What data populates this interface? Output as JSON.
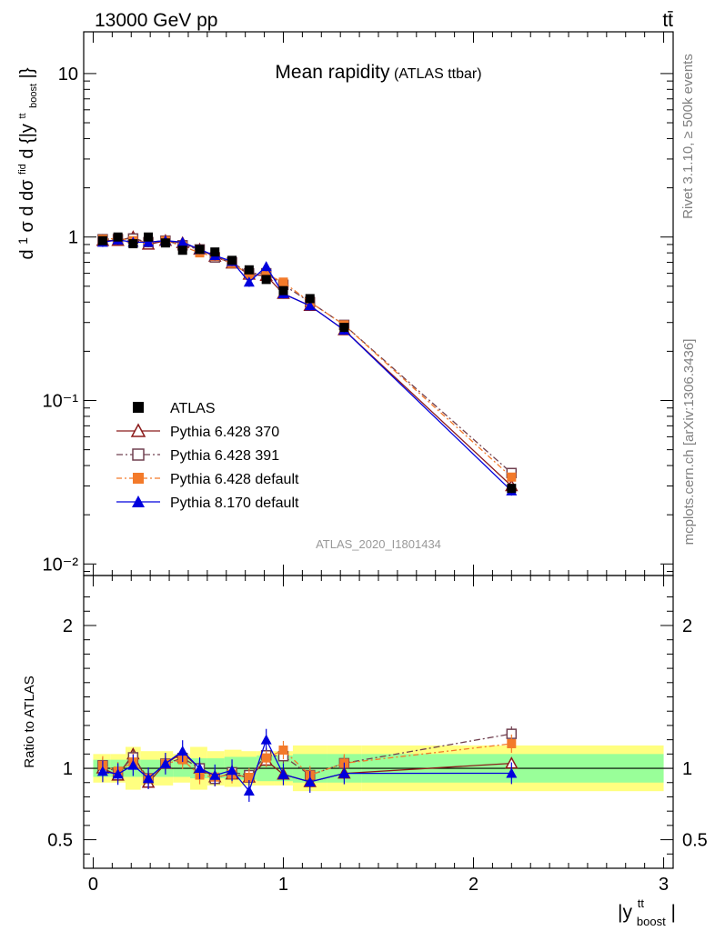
{
  "header": {
    "energy_label": "13000 GeV pp",
    "process_label": "tt̄",
    "title_main": "Mean rapidity",
    "title_sub": "(ATLAS ttbar)",
    "analysis_id": "ATLAS_2020_I1801434",
    "rivet_label": "Rivet 3.1.10, ≥ 500k events",
    "mcplots_label": "mcplots.cern.ch [arXiv:1306.3436]"
  },
  "axes": {
    "top_ylabel_lines": [
      "d",
      "1",
      "σ",
      "d",
      "dσ",
      "fid",
      "d {|y",
      "tt",
      "boost",
      "|}"
    ],
    "bottom_ylabel": "Ratio to ATLAS",
    "xlabel_main": "|y",
    "xlabel_sup": "tt",
    "xlabel_sub": "boost",
    "xlabel_end": "|"
  },
  "chart_data": {
    "type": "line",
    "x": [
      0.05,
      0.13,
      0.21,
      0.29,
      0.38,
      0.47,
      0.56,
      0.64,
      0.73,
      0.82,
      0.91,
      1.0,
      1.14,
      1.32,
      2.2
    ],
    "x_edges": [
      0.0,
      0.09,
      0.17,
      0.25,
      0.34,
      0.42,
      0.51,
      0.6,
      0.69,
      0.78,
      0.86,
      0.95,
      1.05,
      1.23,
      1.41,
      3.0
    ],
    "xlim": [
      -0.05,
      3.05
    ],
    "ylim_top": [
      0.0085,
      18
    ],
    "yscale_top": "log",
    "ylim_bottom": [
      0.3,
      2.35
    ],
    "xticks": [
      "0",
      "1",
      "2",
      "3"
    ],
    "yticks_top": [
      "10⁻²",
      "10⁻¹",
      "1",
      "10"
    ],
    "yticks_bottom": [
      "0.5",
      "1",
      "2"
    ],
    "data": {
      "name": "ATLAS",
      "color": "#000000",
      "values": [
        0.95,
        1.0,
        0.91,
        1.0,
        0.92,
        0.83,
        0.84,
        0.81,
        0.72,
        0.63,
        0.55,
        0.47,
        0.42,
        0.28,
        0.029
      ],
      "band_inner": [
        0.06,
        0.06,
        0.06,
        0.06,
        0.06,
        0.06,
        0.07,
        0.07,
        0.08,
        0.08,
        0.09,
        0.09,
        0.1,
        0.1,
        0.1
      ],
      "band_outer": [
        0.1,
        0.1,
        0.15,
        0.12,
        0.12,
        0.1,
        0.15,
        0.12,
        0.13,
        0.12,
        0.12,
        0.12,
        0.16,
        0.16,
        0.16
      ]
    },
    "series": [
      {
        "name": "Pythia 6.428 370",
        "color": "#8b1a1a",
        "marker": "triangle-open",
        "dash": "",
        "values": [
          0.95,
          0.95,
          1.0,
          0.9,
          0.95,
          0.92,
          0.84,
          0.76,
          0.69,
          0.59,
          0.58,
          0.45,
          0.38,
          0.27,
          0.03
        ]
      },
      {
        "name": "Pythia 6.428 391",
        "color": "#704050",
        "marker": "square-open",
        "dash": "7,3,2,3",
        "values": [
          0.97,
          0.97,
          0.98,
          0.93,
          0.95,
          0.89,
          0.84,
          0.75,
          0.7,
          0.6,
          0.6,
          0.51,
          0.4,
          0.29,
          0.036
        ]
      },
      {
        "name": "Pythia 6.428 default",
        "color": "#f37a2a",
        "marker": "square-filled",
        "dash": "6,3,2,3",
        "values": [
          0.97,
          0.98,
          0.95,
          0.93,
          0.95,
          0.88,
          0.8,
          0.76,
          0.69,
          0.59,
          0.59,
          0.53,
          0.4,
          0.29,
          0.034
        ]
      },
      {
        "name": "Pythia 8.170 default",
        "color": "#0000dd",
        "marker": "triangle-filled",
        "dash": "",
        "values": [
          0.93,
          0.96,
          0.93,
          0.93,
          0.95,
          0.93,
          0.84,
          0.77,
          0.71,
          0.53,
          0.66,
          0.45,
          0.38,
          0.27,
          0.028
        ]
      }
    ],
    "colors": {
      "band_outer": "#ffff80",
      "band_inner": "#99ff99"
    }
  }
}
